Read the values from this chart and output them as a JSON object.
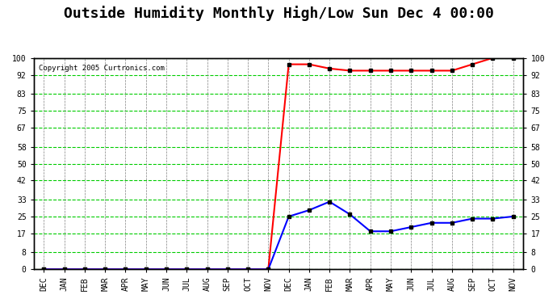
{
  "title": "Outside Humidity Monthly High/Low Sun Dec 4 00:00",
  "copyright": "Copyright 2005 Curtronics.com",
  "x_labels": [
    "DEC",
    "JAN",
    "FEB",
    "MAR",
    "APR",
    "MAY",
    "JUN",
    "JUL",
    "AUG",
    "SEP",
    "OCT",
    "NOV",
    "DEC",
    "JAN",
    "FEB",
    "MAR",
    "APR",
    "MAY",
    "JUN",
    "JUL",
    "AUG",
    "SEP",
    "OCT",
    "NOV"
  ],
  "yticks": [
    0,
    8,
    17,
    25,
    33,
    42,
    50,
    58,
    67,
    75,
    83,
    92,
    100
  ],
  "high_values": [
    0,
    0,
    0,
    0,
    0,
    0,
    0,
    0,
    0,
    0,
    0,
    0,
    97,
    97,
    95,
    94,
    94,
    94,
    94,
    94,
    94,
    97,
    100,
    100
  ],
  "low_values": [
    0,
    0,
    0,
    0,
    0,
    0,
    0,
    0,
    0,
    0,
    0,
    0,
    25,
    28,
    32,
    26,
    18,
    18,
    20,
    22,
    22,
    24,
    24,
    25
  ],
  "high_color": "#FF0000",
  "low_color": "#0000FF",
  "bg_color": "#FFFFFF",
  "plot_bg": "#FFFFFF",
  "grid_color_major": "#808080",
  "grid_color_minor": "#00CC00",
  "title_fontsize": 13,
  "marker": "s",
  "marker_size": 3,
  "ylim": [
    0,
    100
  ]
}
